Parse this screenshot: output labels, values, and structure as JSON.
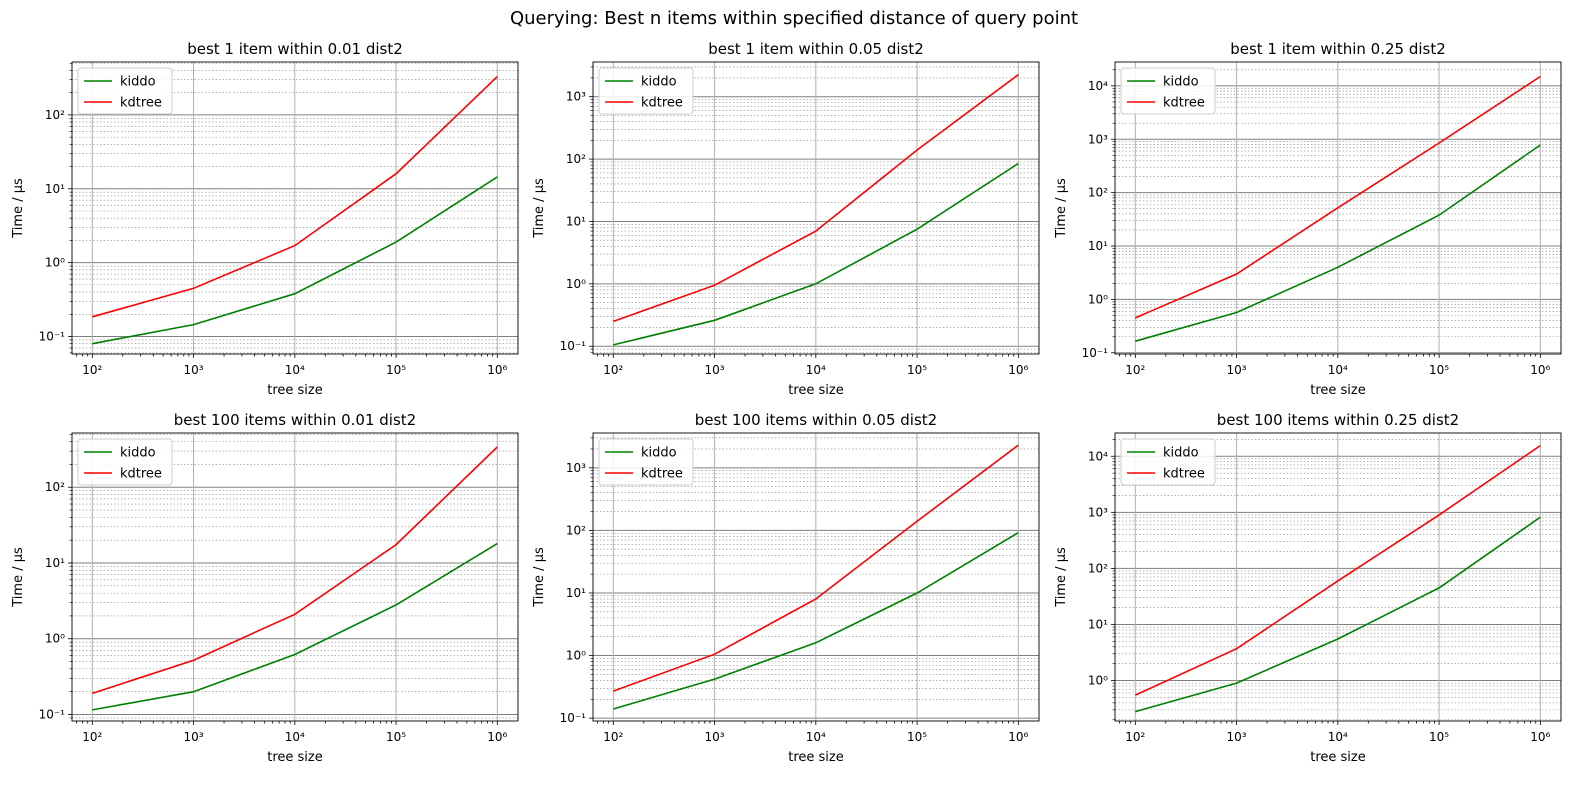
{
  "figure": {
    "title": "Querying: Best n items within specified distance of query point"
  },
  "chart_data": [
    {
      "type": "line",
      "title": "best 1 item within 0.01 dist2",
      "xlabel": "tree size",
      "ylabel": "Time / µs",
      "x": [
        100,
        1000,
        10000,
        100000,
        1000000
      ],
      "xscale": "log",
      "yscale": "log",
      "xlim": [
        63,
        1600000
      ],
      "ylim": [
        0.058,
        520
      ],
      "grid": true,
      "legend": "top-left",
      "series": [
        {
          "name": "kiddo",
          "color": "#008000",
          "values": [
            0.08,
            0.145,
            0.38,
            1.9,
            14.5
          ]
        },
        {
          "name": "kdtree",
          "color": "#ff0000",
          "values": [
            0.185,
            0.45,
            1.7,
            16,
            330
          ]
        }
      ]
    },
    {
      "type": "line",
      "title": "best 1 item within 0.05 dist2",
      "xlabel": "tree size",
      "ylabel": "Time / µs",
      "x": [
        100,
        1000,
        10000,
        100000,
        1000000
      ],
      "xscale": "log",
      "yscale": "log",
      "xlim": [
        63,
        1600000
      ],
      "ylim": [
        0.075,
        3600
      ],
      "grid": true,
      "legend": "top-left",
      "series": [
        {
          "name": "kiddo",
          "color": "#008000",
          "values": [
            0.105,
            0.26,
            1.0,
            7.5,
            85
          ]
        },
        {
          "name": "kdtree",
          "color": "#ff0000",
          "values": [
            0.25,
            0.95,
            7.0,
            140,
            2250
          ]
        }
      ]
    },
    {
      "type": "line",
      "title": "best 1 item within 0.25 dist2",
      "xlabel": "tree size",
      "ylabel": "Time / µs",
      "x": [
        100,
        1000,
        10000,
        100000,
        1000000
      ],
      "xscale": "log",
      "yscale": "log",
      "xlim": [
        63,
        1600000
      ],
      "ylim": [
        0.095,
        28000
      ],
      "grid": true,
      "legend": "top-left",
      "series": [
        {
          "name": "kiddo",
          "color": "#008000",
          "values": [
            0.165,
            0.57,
            4.0,
            38,
            780
          ]
        },
        {
          "name": "kdtree",
          "color": "#ff0000",
          "values": [
            0.45,
            3.0,
            52,
            850,
            15000
          ]
        }
      ]
    },
    {
      "type": "line",
      "title": "best 100 items within 0.01 dist2",
      "xlabel": "tree size",
      "ylabel": "Time / µs",
      "x": [
        100,
        1000,
        10000,
        100000,
        1000000
      ],
      "xscale": "log",
      "yscale": "log",
      "xlim": [
        63,
        1600000
      ],
      "ylim": [
        0.082,
        520
      ],
      "grid": true,
      "legend": "top-left",
      "series": [
        {
          "name": "kiddo",
          "color": "#008000",
          "values": [
            0.115,
            0.2,
            0.62,
            2.8,
            18
          ]
        },
        {
          "name": "kdtree",
          "color": "#ff0000",
          "values": [
            0.19,
            0.52,
            2.1,
            17.5,
            340
          ]
        }
      ]
    },
    {
      "type": "line",
      "title": "best 100 items within 0.05 dist2",
      "xlabel": "tree size",
      "ylabel": "Time / µs",
      "x": [
        100,
        1000,
        10000,
        100000,
        1000000
      ],
      "xscale": "log",
      "yscale": "log",
      "xlim": [
        63,
        1600000
      ],
      "ylim": [
        0.09,
        3600
      ],
      "grid": true,
      "legend": "top-left",
      "series": [
        {
          "name": "kiddo",
          "color": "#008000",
          "values": [
            0.14,
            0.42,
            1.6,
            10,
            92
          ]
        },
        {
          "name": "kdtree",
          "color": "#ff0000",
          "values": [
            0.27,
            1.05,
            8.0,
            140,
            2300
          ]
        }
      ]
    },
    {
      "type": "line",
      "title": "best 100 items within 0.25 dist2",
      "xlabel": "tree size",
      "ylabel": "Time / µs",
      "x": [
        100,
        1000,
        10000,
        100000,
        1000000
      ],
      "xscale": "log",
      "yscale": "log",
      "xlim": [
        63,
        1600000
      ],
      "ylim": [
        0.19,
        26000
      ],
      "grid": true,
      "legend": "top-left",
      "series": [
        {
          "name": "kiddo",
          "color": "#008000",
          "values": [
            0.28,
            0.9,
            5.5,
            45,
            820
          ]
        },
        {
          "name": "kdtree",
          "color": "#ff0000",
          "values": [
            0.55,
            3.7,
            60,
            900,
            15500
          ]
        }
      ]
    }
  ]
}
